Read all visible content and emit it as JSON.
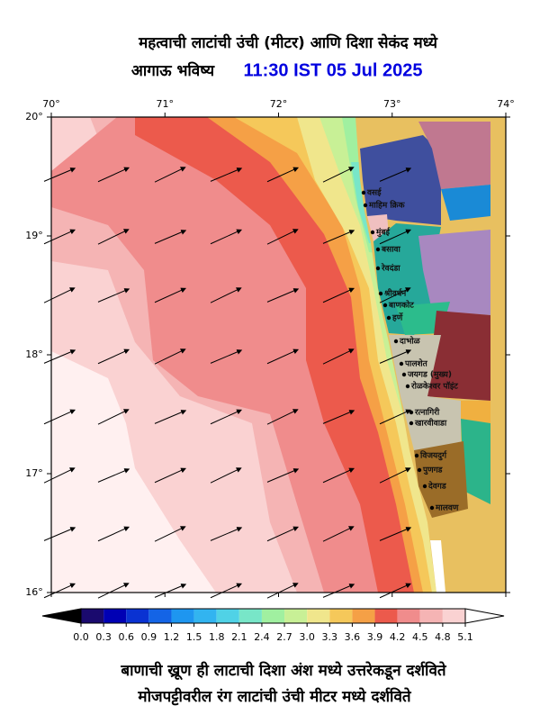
{
  "header": {
    "title": "महत्वाची लाटांची उंची (मीटर) आणि दिशा सेकंद मध्ये",
    "subtitle": "आगाऊ भविष्य",
    "time": "11:30 IST 05 Jul 2025"
  },
  "map": {
    "lon_ticks": [
      "70°",
      "71°",
      "72°",
      "73°",
      "74°"
    ],
    "lat_ticks": [
      "20°",
      "19°",
      "18°",
      "17°",
      "16°"
    ],
    "places": [
      "वसई",
      "माहिम क्रिक",
      "मुंबई",
      "बसावा",
      "रेवदंडा",
      "श्रीवर्धन",
      "बाणकोट",
      "हर्णे",
      "दाभोळ",
      "पालशेत",
      "जयगड (मुख्य)",
      "रोळकेश्वर पॉइंट",
      "रत्नागिरी",
      "खारवीवाडा",
      "विजयदुर्ग",
      "पुणगड",
      "देवगड",
      "मालवण"
    ]
  },
  "colorbar": {
    "ticks": [
      "0.0",
      "0.3",
      "0.6",
      "0.9",
      "1.2",
      "1.5",
      "1.8",
      "2.1",
      "2.4",
      "2.7",
      "3.0",
      "3.3",
      "3.6",
      "3.9",
      "4.2",
      "4.5",
      "4.8",
      "5.1"
    ],
    "colors": [
      "#000000",
      "#1a0a6e",
      "#0000b4",
      "#0a32d2",
      "#1464e6",
      "#1e96f0",
      "#32b4f0",
      "#50d2e6",
      "#78e6c8",
      "#a0f0a0",
      "#c8f096",
      "#f0e68c",
      "#f5c85a",
      "#f5a046",
      "#ec5a4c",
      "#f08c8c",
      "#f5b4b4",
      "#fad2d2",
      "#ffffff"
    ]
  },
  "footer": {
    "line1": "बाणाची ख्रूण ही लाटाची दिशा अंश मध्ये उत्तरेकडून दर्शविते",
    "line2": "मोजपट्टीवरील रंग लाटांची उंची मीटर मध्ये दर्शविते"
  }
}
